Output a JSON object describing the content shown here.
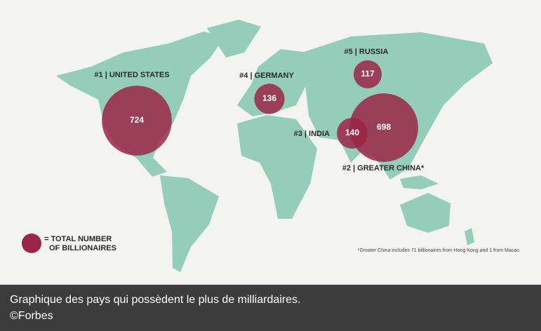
{
  "chart_data": {
    "type": "bubble-map",
    "categories": [
      "#1 | UNITED STATES",
      "#2 | GREATER CHINA*",
      "#3 | INDIA",
      "#4 | GERMANY",
      "#5 | RUSSIA"
    ],
    "values": [
      724,
      698,
      140,
      136,
      117
    ],
    "color": "#9c2447",
    "legend": [
      "= TOTAL NUMBER",
      "OF BILLIONAIRES"
    ],
    "footnote": "*Greater China includes 71 billionaires from Hong Kong and 1 from Macao"
  },
  "caption": {
    "text": "Graphique des pays qui possèdent le plus de milliardaires.",
    "credit": "©Forbes"
  }
}
